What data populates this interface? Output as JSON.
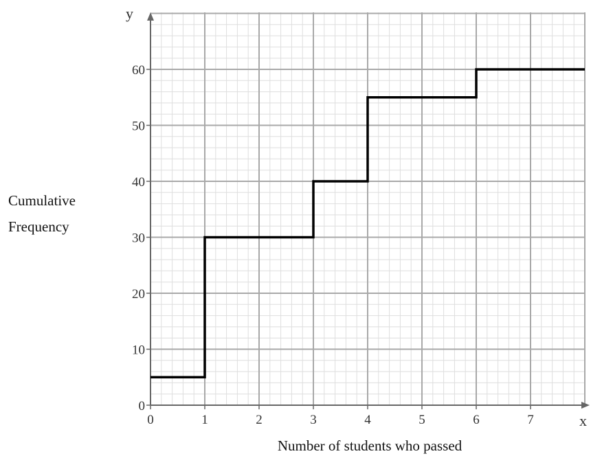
{
  "chart_data": {
    "type": "line",
    "step": true,
    "title": "",
    "xlabel": "Number of students who passed",
    "ylabel_lines": [
      "Cumulative",
      "Frequency"
    ],
    "x_axis_letter": "x",
    "y_axis_letter": "y",
    "xlim": [
      0,
      8
    ],
    "ylim": [
      0,
      70
    ],
    "x_ticks": [
      0,
      1,
      2,
      3,
      4,
      5,
      6,
      7
    ],
    "y_ticks": [
      0,
      10,
      20,
      30,
      40,
      50,
      60
    ],
    "grid": true,
    "minor_grid_x": 0.2,
    "minor_grid_y": 2,
    "series": [
      {
        "x": [
          0,
          1,
          1,
          3,
          3,
          4,
          4,
          6,
          6,
          8
        ],
        "y": [
          5,
          5,
          30,
          30,
          40,
          40,
          55,
          55,
          60,
          60
        ]
      }
    ],
    "colors": {
      "line": "#000000",
      "major_grid": "#a8a8a8",
      "minor_grid": "#dedede",
      "axis": "#666666",
      "text": "#333333"
    }
  }
}
